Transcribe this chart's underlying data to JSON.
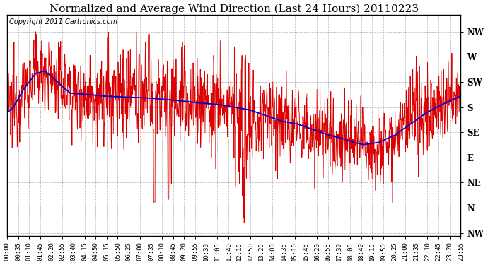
{
  "title": "Normalized and Average Wind Direction (Last 24 Hours) 20110223",
  "copyright": "Copyright 2011 Cartronics.com",
  "background_color": "#ffffff",
  "plot_bg_color": "#ffffff",
  "ytick_labels": [
    "NW",
    "W",
    "SW",
    "S",
    "SE",
    "E",
    "NE",
    "N",
    "NW"
  ],
  "ytick_values": [
    360,
    315,
    270,
    225,
    180,
    135,
    90,
    45,
    0
  ],
  "ylim": [
    -5,
    390
  ],
  "xtick_labels": [
    "00:00",
    "00:35",
    "01:10",
    "01:45",
    "02:20",
    "02:55",
    "03:40",
    "04:15",
    "04:50",
    "05:15",
    "05:50",
    "06:25",
    "07:00",
    "07:35",
    "08:10",
    "08:45",
    "09:20",
    "09:55",
    "10:30",
    "11:05",
    "11:40",
    "12:15",
    "12:50",
    "13:25",
    "14:00",
    "14:35",
    "15:10",
    "15:45",
    "16:20",
    "16:55",
    "17:30",
    "18:05",
    "18:40",
    "19:15",
    "19:50",
    "20:25",
    "21:00",
    "21:35",
    "22:10",
    "22:45",
    "23:20",
    "23:55"
  ],
  "red_line_color": "#dd0000",
  "blue_line_color": "#0000cc",
  "grid_color": "#aaaaaa",
  "title_fontsize": 11,
  "copyright_fontsize": 7,
  "tick_fontsize": 6.5,
  "ytick_fontsize": 8.5,
  "figwidth": 6.9,
  "figheight": 3.75,
  "dpi": 100
}
